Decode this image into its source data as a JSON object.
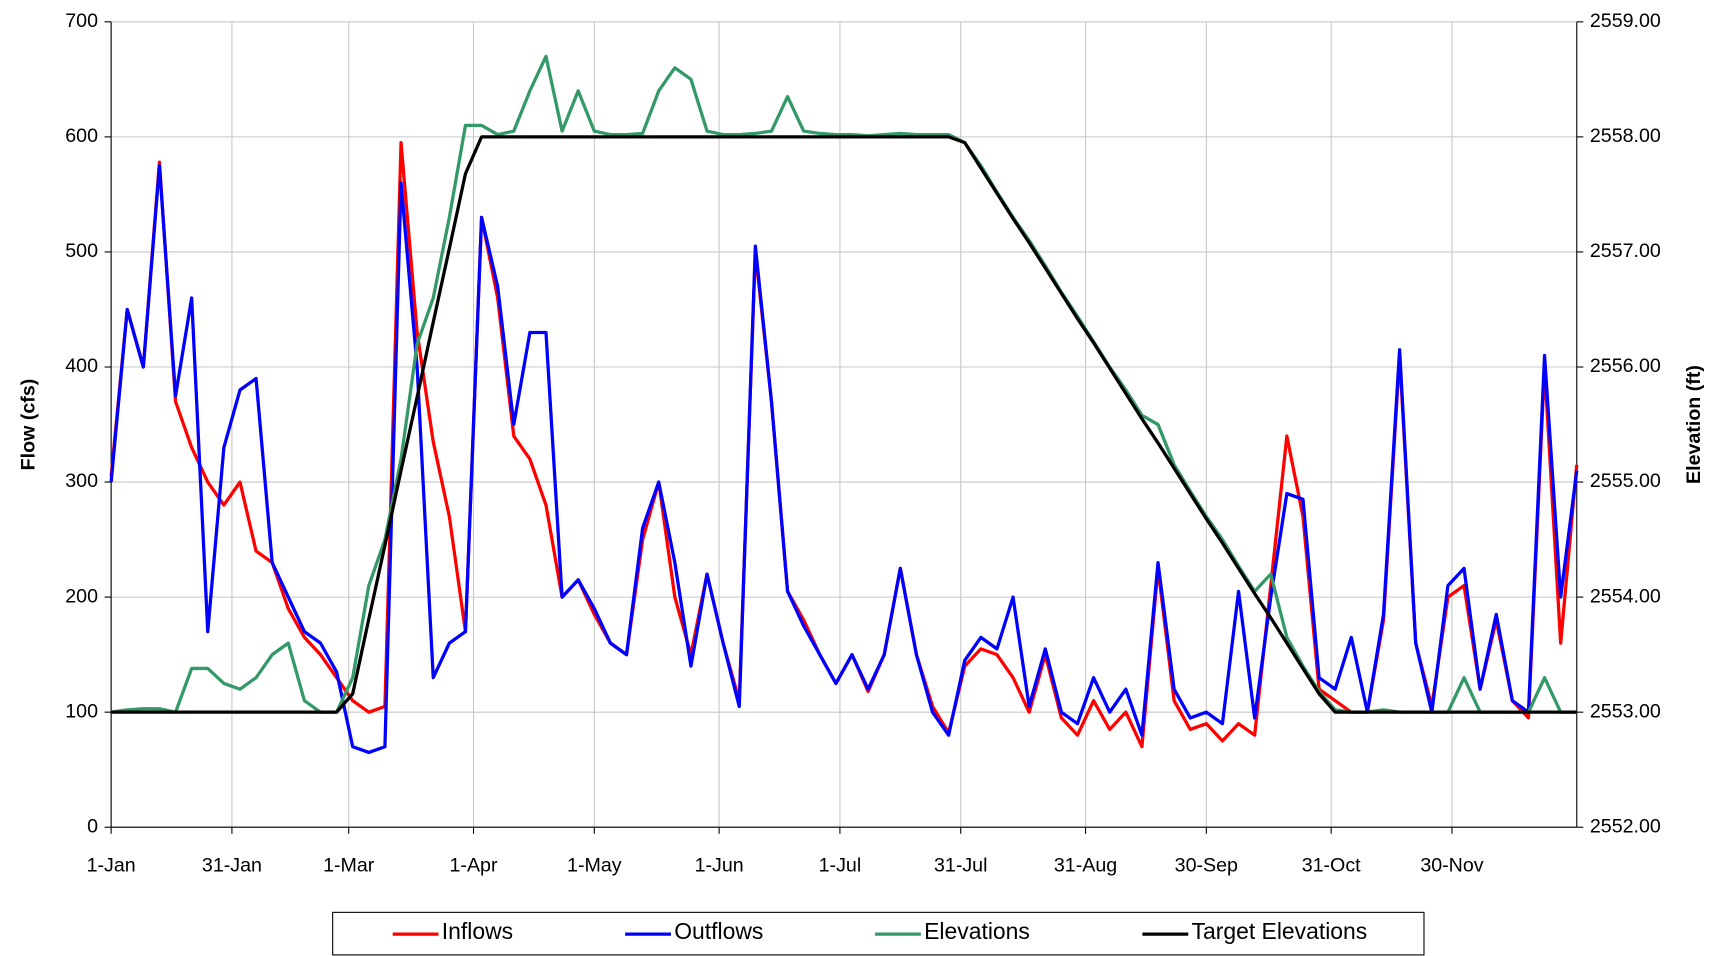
{
  "chart_data": {
    "type": "line",
    "ylabel": "Flow (cfs)",
    "y2label": "Elevation (ft)",
    "grid": true,
    "legend": "bottom",
    "xlim": [
      0,
      364
    ],
    "xticks": [
      {
        "value": 0,
        "label": "1-Jan"
      },
      {
        "value": 30,
        "label": "31-Jan"
      },
      {
        "value": 59,
        "label": "1-Mar"
      },
      {
        "value": 90,
        "label": "1-Apr"
      },
      {
        "value": 120,
        "label": "1-May"
      },
      {
        "value": 151,
        "label": "1-Jun"
      },
      {
        "value": 181,
        "label": "1-Jul"
      },
      {
        "value": 211,
        "label": "31-Jul"
      },
      {
        "value": 242,
        "label": "31-Aug"
      },
      {
        "value": 272,
        "label": "30-Sep"
      },
      {
        "value": 303,
        "label": "31-Oct"
      },
      {
        "value": 333,
        "label": "30-Nov"
      }
    ],
    "ylim": [
      0,
      700
    ],
    "yticks": [
      0,
      100,
      200,
      300,
      400,
      500,
      600,
      700
    ],
    "y2lim": [
      2552,
      2559
    ],
    "y2ticks": [
      {
        "value": 2552,
        "label": "2552.00"
      },
      {
        "value": 2553,
        "label": "2553.00"
      },
      {
        "value": 2554,
        "label": "2554.00"
      },
      {
        "value": 2555,
        "label": "2555.00"
      },
      {
        "value": 2556,
        "label": "2556.00"
      },
      {
        "value": 2557,
        "label": "2557.00"
      },
      {
        "value": 2558,
        "label": "2558.00"
      },
      {
        "value": 2559,
        "label": "2559.00"
      }
    ],
    "x": [
      0,
      4,
      8,
      12,
      16,
      20,
      24,
      28,
      32,
      36,
      40,
      44,
      48,
      52,
      56,
      60,
      64,
      68,
      72,
      76,
      80,
      84,
      88,
      92,
      96,
      100,
      104,
      108,
      112,
      116,
      120,
      124,
      128,
      132,
      136,
      140,
      144,
      148,
      152,
      156,
      160,
      164,
      168,
      172,
      176,
      180,
      184,
      188,
      192,
      196,
      200,
      204,
      208,
      212,
      216,
      220,
      224,
      228,
      232,
      236,
      240,
      244,
      248,
      252,
      256,
      260,
      264,
      268,
      272,
      276,
      280,
      284,
      288,
      292,
      296,
      300,
      304,
      308,
      312,
      316,
      320,
      324,
      328,
      332,
      336,
      340,
      344,
      348,
      352,
      356,
      360,
      364
    ],
    "series": [
      {
        "name": "Inflows",
        "color": "#ff0000",
        "values": [
          305,
          450,
          400,
          578,
          370,
          330,
          300,
          280,
          300,
          240,
          230,
          190,
          165,
          150,
          130,
          110,
          100,
          105,
          595,
          430,
          335,
          270,
          170,
          530,
          460,
          340,
          320,
          280,
          200,
          215,
          185,
          160,
          150,
          250,
          300,
          200,
          150,
          220,
          160,
          110,
          500,
          370,
          205,
          180,
          150,
          125,
          150,
          118,
          150,
          225,
          150,
          105,
          82,
          140,
          155,
          150,
          130,
          100,
          150,
          95,
          80,
          110,
          85,
          100,
          70,
          225,
          110,
          85,
          90,
          75,
          90,
          80,
          210,
          340,
          270,
          120,
          110,
          100,
          100,
          180,
          410,
          160,
          105,
          200,
          210,
          120,
          180,
          110,
          95,
          400,
          160,
          315
        ]
      },
      {
        "name": "Outflows",
        "color": "#0000ff",
        "values": [
          300,
          450,
          400,
          575,
          375,
          460,
          170,
          330,
          380,
          390,
          230,
          200,
          170,
          160,
          135,
          70,
          65,
          70,
          560,
          400,
          130,
          160,
          170,
          530,
          470,
          350,
          430,
          430,
          200,
          215,
          190,
          160,
          150,
          260,
          300,
          230,
          140,
          220,
          160,
          105,
          505,
          370,
          205,
          175,
          150,
          125,
          150,
          120,
          150,
          225,
          150,
          100,
          80,
          145,
          165,
          155,
          200,
          105,
          155,
          100,
          90,
          130,
          100,
          120,
          80,
          230,
          120,
          95,
          100,
          90,
          205,
          95,
          200,
          290,
          285,
          130,
          120,
          165,
          100,
          185,
          415,
          160,
          100,
          210,
          225,
          120,
          185,
          110,
          100,
          410,
          200,
          310
        ]
      },
      {
        "name": "Elevations",
        "color": "#339966",
        "axis": "y2",
        "values": [
          2553.0,
          2553.02,
          2553.03,
          2553.03,
          2553.0,
          2553.38,
          2553.38,
          2553.25,
          2553.2,
          2553.3,
          2553.5,
          2553.6,
          2553.1,
          2553.0,
          2553.0,
          2553.3,
          2554.1,
          2554.5,
          2555.2,
          2556.2,
          2556.6,
          2557.3,
          2558.1,
          2558.1,
          2558.02,
          2558.05,
          2558.4,
          2558.7,
          2558.05,
          2558.4,
          2558.05,
          2558.02,
          2558.02,
          2558.03,
          2558.4,
          2558.6,
          2558.5,
          2558.05,
          2558.02,
          2558.02,
          2558.03,
          2558.05,
          2558.35,
          2558.05,
          2558.03,
          2558.02,
          2558.02,
          2558.01,
          2558.02,
          2558.03,
          2558.02,
          2558.02,
          2558.02,
          2557.95,
          2557.75,
          2557.52,
          2557.3,
          2557.1,
          2556.88,
          2556.65,
          2556.44,
          2556.22,
          2556.0,
          2555.8,
          2555.58,
          2555.5,
          2555.15,
          2554.92,
          2554.7,
          2554.5,
          2554.27,
          2554.05,
          2554.2,
          2553.65,
          2553.4,
          2553.18,
          2553.02,
          2553.0,
          2553.0,
          2553.02,
          2553.0,
          2553.0,
          2553.0,
          2553.0,
          2553.3,
          2553.0,
          2553.0,
          2553.0,
          2553.0,
          2553.3,
          2553.0,
          2553.0
        ]
      },
      {
        "name": "Target Elevations",
        "color": "#000000",
        "axis": "y2",
        "values": [
          2553,
          2553,
          2553,
          2553,
          2553,
          2553,
          2553,
          2553,
          2553,
          2553,
          2553,
          2553,
          2553,
          2553,
          2553,
          2553.16,
          2553.81,
          2554.45,
          2555.1,
          2555.74,
          2556.39,
          2557.03,
          2557.68,
          2558,
          2558,
          2558,
          2558,
          2558,
          2558,
          2558,
          2558,
          2558,
          2558,
          2558,
          2558,
          2558,
          2558,
          2558,
          2558,
          2558,
          2558,
          2558,
          2558,
          2558,
          2558,
          2558,
          2558,
          2558,
          2558,
          2558,
          2558,
          2558,
          2558,
          2557.95,
          2557.73,
          2557.51,
          2557.29,
          2557.08,
          2556.86,
          2556.64,
          2556.42,
          2556.21,
          2555.99,
          2555.77,
          2555.55,
          2555.34,
          2555.12,
          2554.9,
          2554.68,
          2554.47,
          2554.25,
          2554.03,
          2553.82,
          2553.6,
          2553.38,
          2553.16,
          2553,
          2553,
          2553,
          2553,
          2553,
          2553,
          2553,
          2553,
          2553,
          2553,
          2553,
          2553,
          2553,
          2553,
          2553,
          2553
        ]
      }
    ]
  }
}
